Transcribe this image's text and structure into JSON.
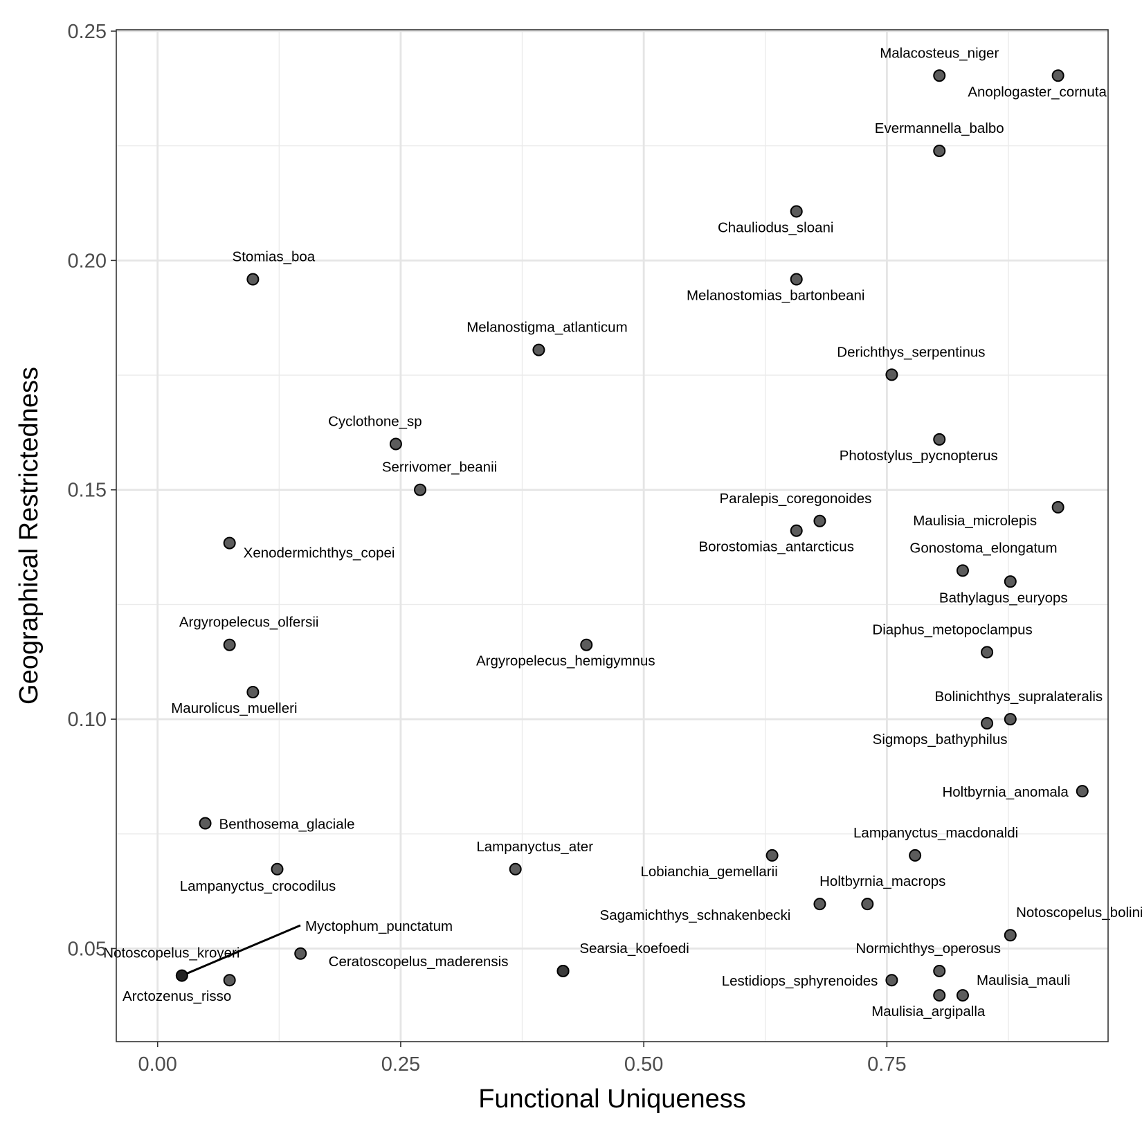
{
  "chart_data": {
    "type": "scatter",
    "title": "",
    "xlabel": "Functional Uniqueness",
    "ylabel": "Geographical Restrictedness",
    "xlim": [
      -0.0425,
      0.9775
    ],
    "ylim": [
      0.0297,
      0.2503
    ],
    "x_ticks": [
      0,
      0.25,
      0.5,
      0.75
    ],
    "x_tick_labels": [
      "0.00",
      "0.25",
      "0.50",
      "0.75"
    ],
    "y_ticks": [
      0.05,
      0.1,
      0.15,
      0.2,
      0.25
    ],
    "y_tick_labels": [
      "0.05",
      "0.10",
      "0.15",
      "0.20",
      "0.25"
    ],
    "grid": true,
    "legend": "none",
    "point_color": "#333333",
    "points": [
      {
        "label": "Malacosteus_niger",
        "x": 0.804,
        "y": 0.2403
      },
      {
        "label": "Anoplogaster_cornuta",
        "x": 0.926,
        "y": 0.2403
      },
      {
        "label": "Evermannella_balbo",
        "x": 0.804,
        "y": 0.2239
      },
      {
        "label": "Chauliodus_sloani",
        "x": 0.657,
        "y": 0.2107
      },
      {
        "label": "Melanostomias_bartonbeani",
        "x": 0.657,
        "y": 0.1959
      },
      {
        "label": "Stomias_boa",
        "x": 0.098,
        "y": 0.1959
      },
      {
        "label": "Melanostigma_atlanticum",
        "x": 0.392,
        "y": 0.1805
      },
      {
        "label": "Derichthys_serpentinus",
        "x": 0.755,
        "y": 0.1751
      },
      {
        "label": "Cyclothone_sp",
        "x": 0.245,
        "y": 0.16
      },
      {
        "label": "Photostylus_pycnopterus",
        "x": 0.804,
        "y": 0.161
      },
      {
        "label": "Serrivomer_beanii",
        "x": 0.27,
        "y": 0.15
      },
      {
        "label": "Maulisia_microlepis",
        "x": 0.926,
        "y": 0.1462
      },
      {
        "label": "Paralepis_coregonoides",
        "x": 0.681,
        "y": 0.1432
      },
      {
        "label": "Borostomias_antarcticus",
        "x": 0.657,
        "y": 0.1411
      },
      {
        "label": "Xenodermichthys_copei",
        "x": 0.074,
        "y": 0.1384
      },
      {
        "label": "Gonostoma_elongatum",
        "x": 0.828,
        "y": 0.1324
      },
      {
        "label": "Bathylagus_euryops",
        "x": 0.877,
        "y": 0.13
      },
      {
        "label": "Argyropelecus_olfersii",
        "x": 0.074,
        "y": 0.1162
      },
      {
        "label": "Argyropelecus_hemigymnus",
        "x": 0.441,
        "y": 0.1162
      },
      {
        "label": "Diaphus_metopoclampus",
        "x": 0.853,
        "y": 0.1146
      },
      {
        "label": "Maurolicus_muelleri",
        "x": 0.098,
        "y": 0.1059
      },
      {
        "label": "Bolinichthys_supralateralis",
        "x": 0.877,
        "y": 0.1
      },
      {
        "label": "Sigmops_bathyphilus",
        "x": 0.853,
        "y": 0.0991
      },
      {
        "label": "Holtbyrnia_anomala",
        "x": 0.951,
        "y": 0.0843
      },
      {
        "label": "Benthosema_glaciale",
        "x": 0.049,
        "y": 0.0773
      },
      {
        "label": "Lampanyctus_macdonaldi",
        "x": 0.779,
        "y": 0.0703
      },
      {
        "label": "Lobianchia_gemellarii",
        "x": 0.632,
        "y": 0.0703
      },
      {
        "label": "Lampanyctus_ater",
        "x": 0.368,
        "y": 0.0673
      },
      {
        "label": "Lampanyctus_crocodilus",
        "x": 0.123,
        "y": 0.0673
      },
      {
        "label": "Holtbyrnia_macrops",
        "x": 0.73,
        "y": 0.0597
      },
      {
        "label": "Sagamichthys_schnakenbecki",
        "x": 0.681,
        "y": 0.0597
      },
      {
        "label": "Notoscopelus_bolini",
        "x": 0.877,
        "y": 0.0529
      },
      {
        "label": "Myctophum_punctatum",
        "x": 0.147,
        "y": 0.0489
      },
      {
        "label": "Normichthys_operosus",
        "x": 0.804,
        "y": 0.0451
      },
      {
        "label": "Searsia_koefoedi",
        "x": 0.417,
        "y": 0.0451
      },
      {
        "label": "Notoscopelus_kroyeri",
        "x": 0.025,
        "y": 0.0441
      },
      {
        "label": "Arctozenus_risso",
        "x": 0.074,
        "y": 0.0431
      },
      {
        "label": "Lestidiops_sphyrenoides",
        "x": 0.755,
        "y": 0.0431
      },
      {
        "label": "Ceratoscopelus_maderensis",
        "x": 0.417,
        "y": 0.0451
      },
      {
        "label": "Maulisia_mauli",
        "x": 0.828,
        "y": 0.0398
      },
      {
        "label": "Maulisia_argipalla",
        "x": 0.804,
        "y": 0.0398
      }
    ]
  }
}
